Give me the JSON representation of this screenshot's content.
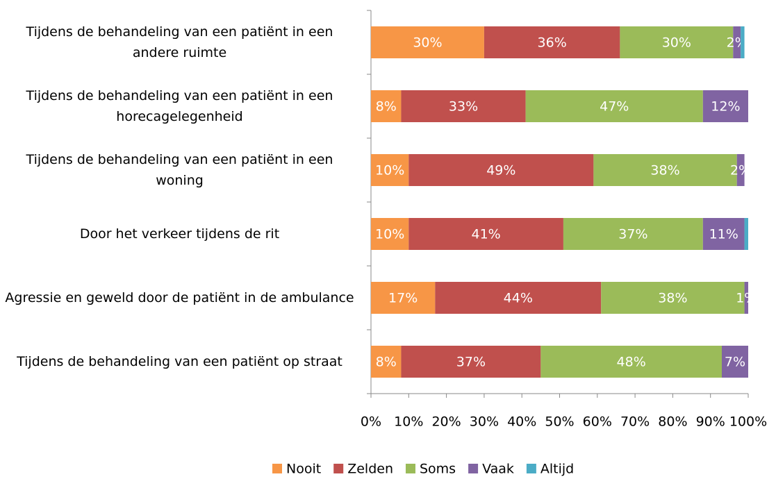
{
  "chart_data": {
    "type": "stacked-bar-horizontal",
    "categories": [
      "Tijdens de behandeling van een patiënt in een andere ruimte",
      "Tijdens de behandeling van een patiënt in een horecagelegenheid",
      "Tijdens de behandeling van een patiënt in een woning",
      "Door het verkeer tijdens de rit",
      "Agressie en geweld door de patiënt in de ambulance",
      "Tijdens de behandeling van een patiënt op straat"
    ],
    "series": [
      {
        "name": "Nooit",
        "color": "#f79646",
        "values": [
          30,
          8,
          10,
          10,
          17,
          8
        ],
        "value_labels": [
          "30%",
          "8%",
          "10%",
          "10%",
          "17%",
          "8%"
        ]
      },
      {
        "name": "Zelden",
        "color": "#c0504d",
        "values": [
          36,
          33,
          49,
          41,
          44,
          37
        ],
        "value_labels": [
          "36%",
          "33%",
          "49%",
          "41%",
          "44%",
          "37%"
        ]
      },
      {
        "name": "Soms",
        "color": "#9bbb59",
        "values": [
          30,
          47,
          38,
          37,
          38,
          48
        ],
        "value_labels": [
          "30%",
          "47%",
          "38%",
          "37%",
          "38%",
          "48%"
        ]
      },
      {
        "name": "Vaak",
        "color": "#8064a2",
        "values": [
          2,
          12,
          2,
          11,
          1,
          7
        ],
        "value_labels": [
          "2%",
          "12%",
          "2%",
          "11%",
          "1%",
          "7%"
        ]
      },
      {
        "name": "Altijd",
        "color": "#4bacc6",
        "values": [
          1,
          0,
          0,
          1,
          0,
          0
        ],
        "value_labels": [
          null,
          null,
          null,
          null,
          null,
          null
        ]
      }
    ],
    "xlim": [
      0,
      100
    ],
    "xticks": [
      {
        "value": 0,
        "label": "0%"
      },
      {
        "value": 10,
        "label": "10%"
      },
      {
        "value": 20,
        "label": "20%"
      },
      {
        "value": 30,
        "label": "30%"
      },
      {
        "value": 40,
        "label": "40%"
      },
      {
        "value": 50,
        "label": "50%"
      },
      {
        "value": 60,
        "label": "60%"
      },
      {
        "value": 70,
        "label": "70%"
      },
      {
        "value": 80,
        "label": "80%"
      },
      {
        "value": 90,
        "label": "90%"
      },
      {
        "value": 100,
        "label": "100%"
      }
    ],
    "legend": "bottom"
  }
}
